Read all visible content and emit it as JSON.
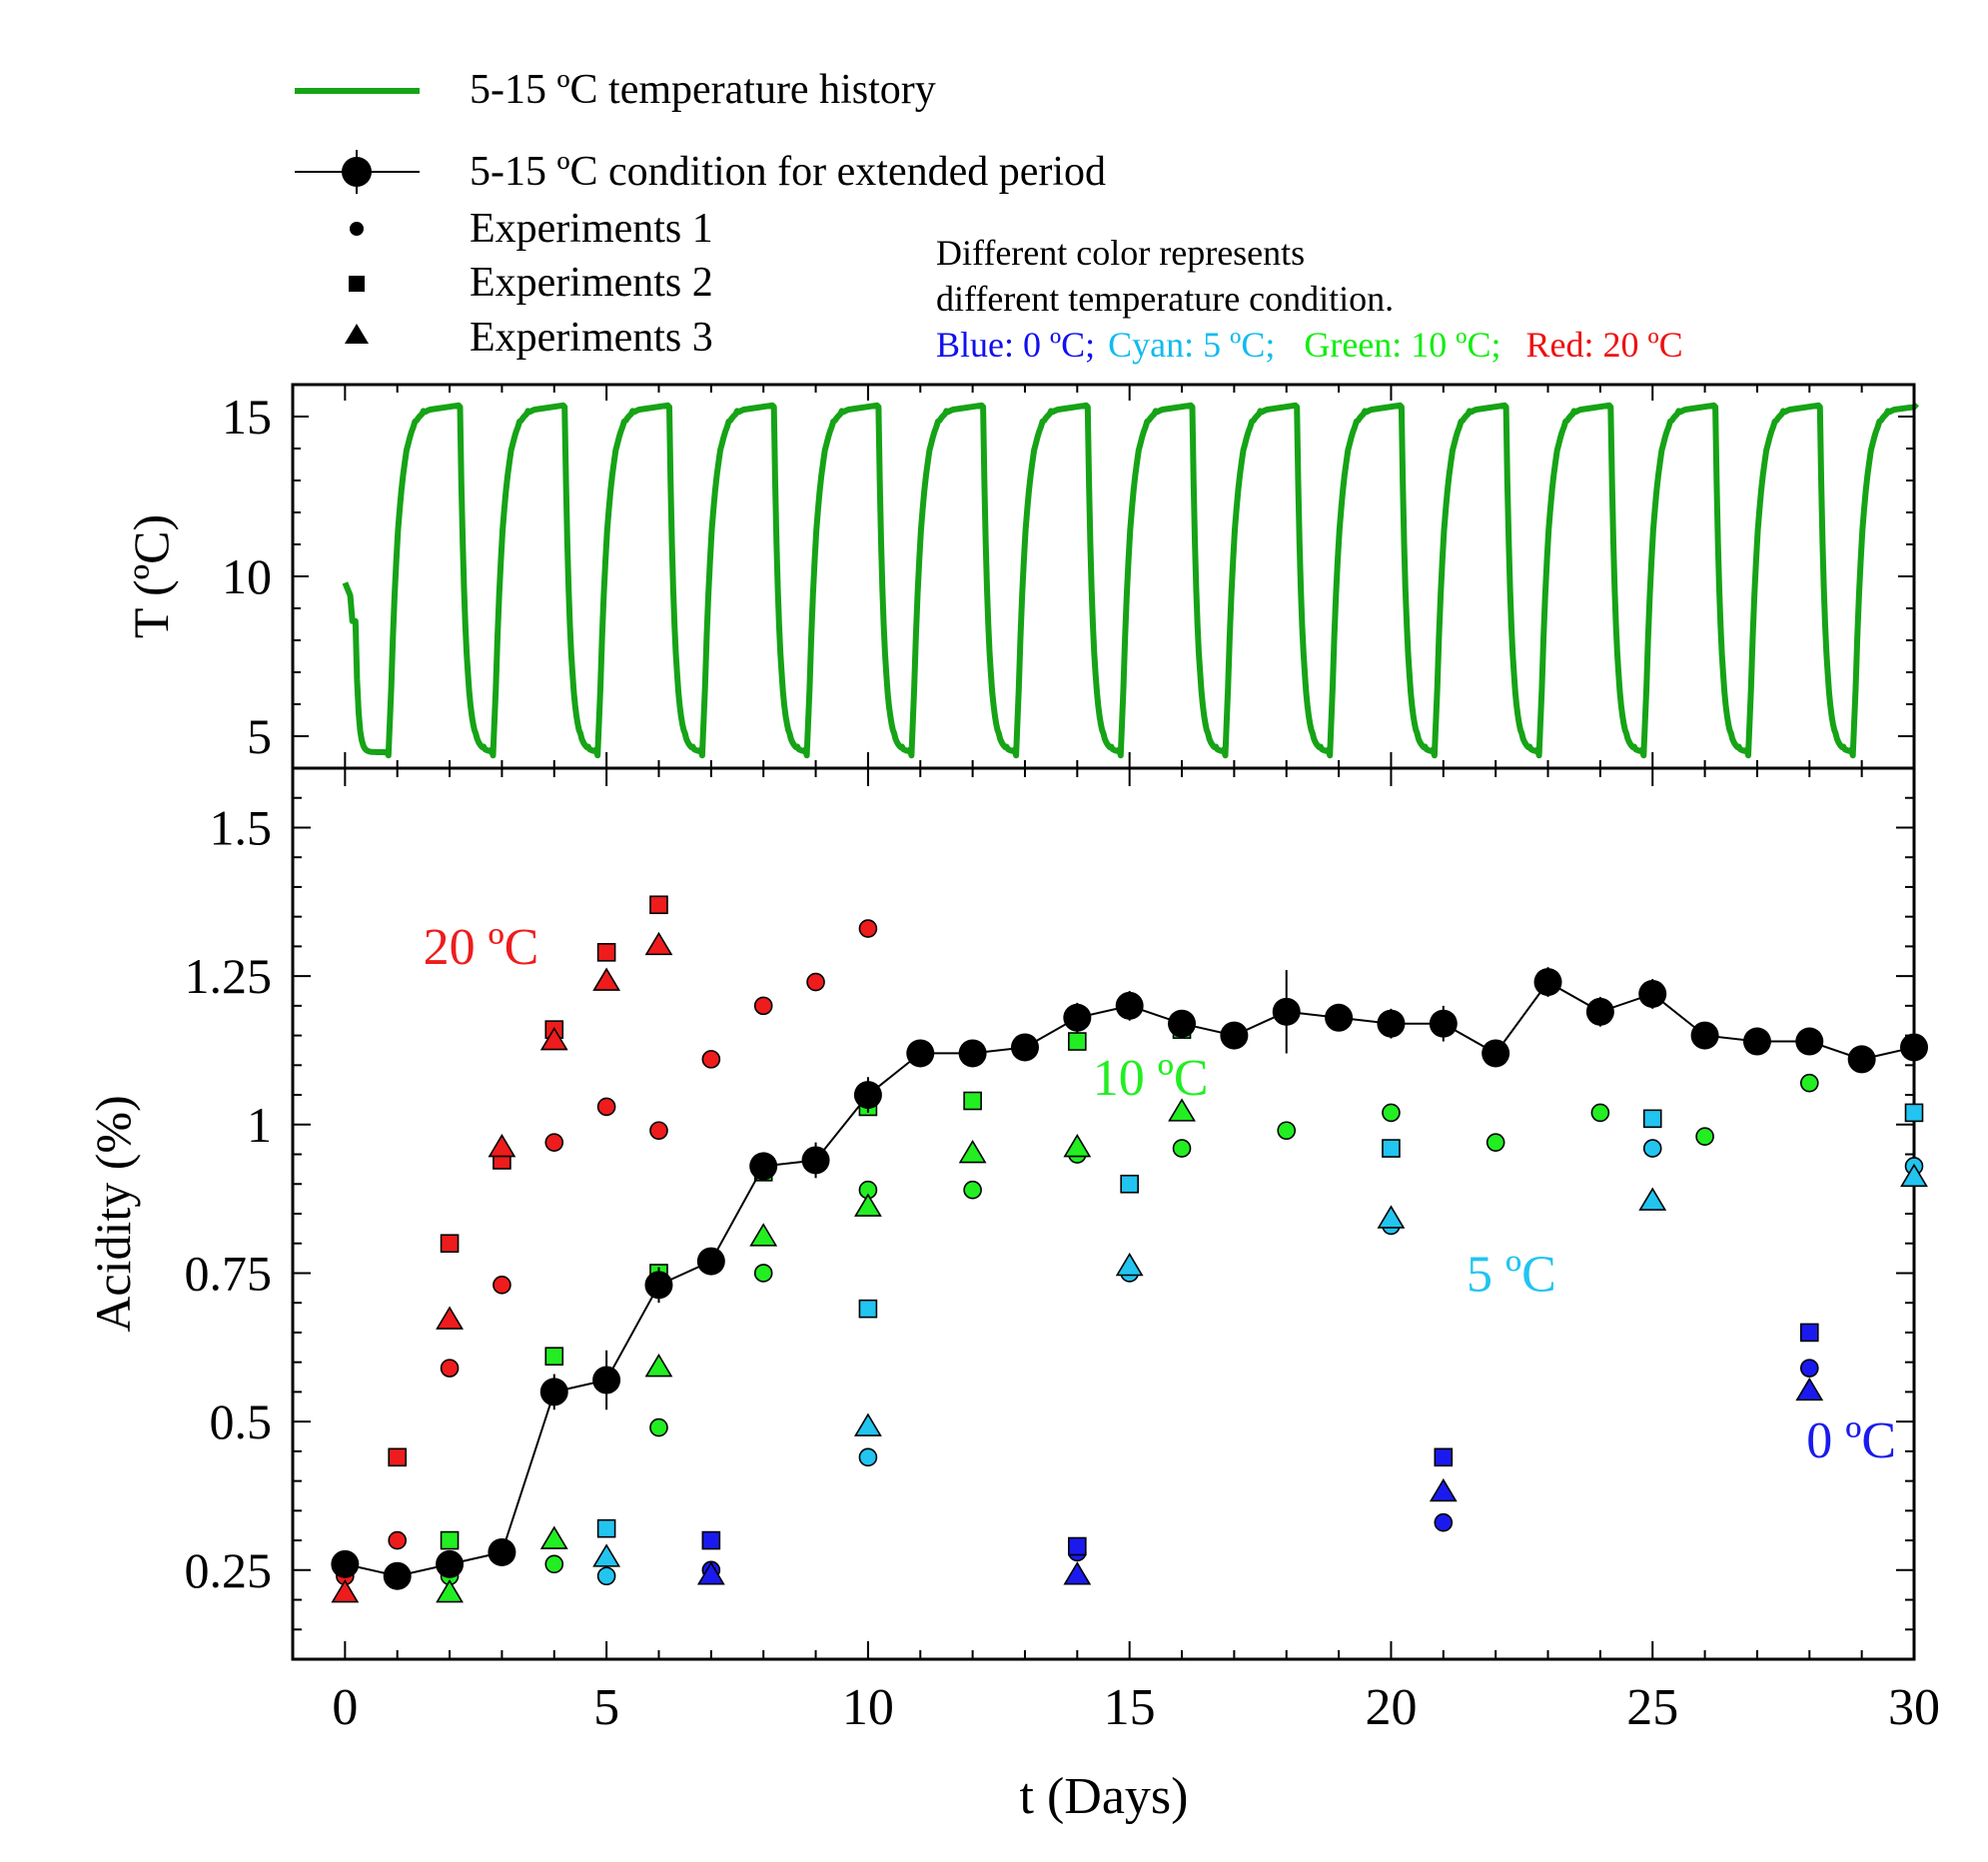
{
  "legend": {
    "items": [
      {
        "label": "5-15 ºC temperature history",
        "marker": "line",
        "color": "#16a316"
      },
      {
        "label": "5-15 ºC condition for extended period",
        "marker": "line-circle",
        "color": "#000000"
      },
      {
        "label": "Experiments 1",
        "marker": "circle",
        "color": "#000000"
      },
      {
        "label": "Experiments 2",
        "marker": "square",
        "color": "#000000"
      },
      {
        "label": "Experiments 3",
        "marker": "triangle",
        "color": "#000000"
      }
    ]
  },
  "note": {
    "line1": "Different color represents",
    "line2": "different temperature condition.",
    "colors": [
      {
        "text": "Blue: 0 ºC;",
        "color": "#1010ee"
      },
      {
        "text": "Cyan: 5 ºC;",
        "color": "#11bbee"
      },
      {
        "text": "Green: 10 ºC;",
        "color": "#11ee11"
      },
      {
        "text": "Red: 20 ºC",
        "color": "#ee1111"
      }
    ]
  },
  "colors": {
    "blue": "#1a1aee",
    "cyan": "#22c4f0",
    "green": "#22ee22",
    "red": "#ee1c1c",
    "history": "#16a316",
    "black": "#000000"
  },
  "chart_data": [
    {
      "type": "line",
      "title": "",
      "xlabel": "",
      "ylabel": "T (ºC)",
      "xlim": [
        -1,
        30
      ],
      "ylim": [
        4,
        16
      ],
      "yticks": [
        "5",
        "10",
        "15"
      ],
      "yticks_values": [
        5,
        10,
        15
      ],
      "series": [
        {
          "name": "5-15 ºC temperature history",
          "color": "#16a316",
          "low": 4.5,
          "high": 15.3,
          "start_value": 9.8,
          "drop_at": [
            0.2,
            2.2,
            4.2,
            6.2,
            8.2,
            10.2,
            12.2,
            14.2,
            16.2,
            18.2,
            20.2,
            22.2,
            24.2,
            26.2,
            28.2
          ],
          "rise_at": [
            0.85,
            2.85,
            4.85,
            6.85,
            8.85,
            10.85,
            12.85,
            14.85,
            16.85,
            18.85,
            20.85,
            22.85,
            24.85,
            26.85,
            28.85
          ]
        }
      ]
    },
    {
      "type": "scatter",
      "title": "",
      "xlabel": "t (Days)",
      "ylabel": "Acidity (%)",
      "xlim": [
        -1,
        30
      ],
      "ylim": [
        0.1,
        1.6
      ],
      "xticks": [
        "0",
        "5",
        "10",
        "15",
        "20",
        "25",
        "30"
      ],
      "xticks_values": [
        0,
        5,
        10,
        15,
        20,
        25,
        30
      ],
      "yticks": [
        "0.25",
        "0.5",
        "0.75",
        "1",
        "1.25",
        "1.5"
      ],
      "yticks_values": [
        0.25,
        0.5,
        0.75,
        1.0,
        1.25,
        1.5
      ],
      "annotations": [
        {
          "text": "20 ºC",
          "x": 2.6,
          "y": 1.27,
          "color": "red"
        },
        {
          "text": "10 ºC",
          "x": 15.4,
          "y": 1.05,
          "color": "green"
        },
        {
          "text": "5 ºC",
          "x": 22.3,
          "y": 0.72,
          "color": "cyan"
        },
        {
          "text": "0 ºC",
          "x": 28.8,
          "y": 0.44,
          "color": "blue"
        }
      ],
      "series": [
        {
          "name": "5-15 ºC condition for extended period",
          "marker": "line-circle",
          "color": "black",
          "points": [
            {
              "x": 0,
              "y": 0.26,
              "err": 0.015
            },
            {
              "x": 1,
              "y": 0.24,
              "err": 0.015
            },
            {
              "x": 2,
              "y": 0.26,
              "err": 0.02
            },
            {
              "x": 3,
              "y": 0.28,
              "err": 0.015
            },
            {
              "x": 4,
              "y": 0.55,
              "err": 0.03
            },
            {
              "x": 5,
              "y": 0.57,
              "err": 0.05
            },
            {
              "x": 6,
              "y": 0.73,
              "err": 0.03
            },
            {
              "x": 7,
              "y": 0.77,
              "err": 0.02
            },
            {
              "x": 8,
              "y": 0.93,
              "err": 0.02
            },
            {
              "x": 9,
              "y": 0.94,
              "err": 0.03
            },
            {
              "x": 10,
              "y": 1.05,
              "err": 0.03
            },
            {
              "x": 11,
              "y": 1.12,
              "err": 0.02
            },
            {
              "x": 12,
              "y": 1.12,
              "err": 0.015
            },
            {
              "x": 13,
              "y": 1.13,
              "err": 0.015
            },
            {
              "x": 14,
              "y": 1.18,
              "err": 0.025
            },
            {
              "x": 15,
              "y": 1.2,
              "err": 0.025
            },
            {
              "x": 16,
              "y": 1.17,
              "err": 0.015
            },
            {
              "x": 17,
              "y": 1.15,
              "err": 0.015
            },
            {
              "x": 18,
              "y": 1.19,
              "err": 0.07
            },
            {
              "x": 19,
              "y": 1.18,
              "err": 0.015
            },
            {
              "x": 20,
              "y": 1.17,
              "err": 0.025
            },
            {
              "x": 21,
              "y": 1.17,
              "err": 0.03
            },
            {
              "x": 22,
              "y": 1.12,
              "err": 0.015
            },
            {
              "x": 23,
              "y": 1.24,
              "err": 0.025
            },
            {
              "x": 24,
              "y": 1.19,
              "err": 0.025
            },
            {
              "x": 25,
              "y": 1.22,
              "err": 0.025
            },
            {
              "x": 26,
              "y": 1.15,
              "err": 0.02
            },
            {
              "x": 27,
              "y": 1.14,
              "err": 0.02
            },
            {
              "x": 28,
              "y": 1.14,
              "err": 0.015
            },
            {
              "x": 29,
              "y": 1.11,
              "err": 0.01
            },
            {
              "x": 30,
              "y": 1.13,
              "err": 0.015
            }
          ]
        },
        {
          "name": "Experiments 1",
          "marker": "circle",
          "points": [
            {
              "x": 0,
              "y": 0.24,
              "color": "red"
            },
            {
              "x": 1,
              "y": 0.3,
              "color": "red"
            },
            {
              "x": 2,
              "y": 0.59,
              "color": "red"
            },
            {
              "x": 3,
              "y": 0.73,
              "color": "red"
            },
            {
              "x": 4,
              "y": 0.97,
              "color": "red"
            },
            {
              "x": 5,
              "y": 1.03,
              "color": "red"
            },
            {
              "x": 6,
              "y": 0.99,
              "color": "red"
            },
            {
              "x": 7,
              "y": 1.11,
              "color": "red"
            },
            {
              "x": 8,
              "y": 1.2,
              "color": "red"
            },
            {
              "x": 9,
              "y": 1.24,
              "color": "red"
            },
            {
              "x": 10,
              "y": 1.33,
              "color": "red"
            },
            {
              "x": 2,
              "y": 0.24,
              "color": "green"
            },
            {
              "x": 4,
              "y": 0.26,
              "color": "green"
            },
            {
              "x": 6,
              "y": 0.49,
              "color": "green"
            },
            {
              "x": 8,
              "y": 0.75,
              "color": "green"
            },
            {
              "x": 10,
              "y": 0.89,
              "color": "green"
            },
            {
              "x": 12,
              "y": 0.89,
              "color": "green"
            },
            {
              "x": 14,
              "y": 0.95,
              "color": "green"
            },
            {
              "x": 16,
              "y": 0.96,
              "color": "green"
            },
            {
              "x": 18,
              "y": 0.99,
              "color": "green"
            },
            {
              "x": 20,
              "y": 1.02,
              "color": "green"
            },
            {
              "x": 22,
              "y": 0.97,
              "color": "green"
            },
            {
              "x": 24,
              "y": 1.02,
              "color": "green"
            },
            {
              "x": 26,
              "y": 0.98,
              "color": "green"
            },
            {
              "x": 28,
              "y": 1.07,
              "color": "green"
            },
            {
              "x": 5,
              "y": 0.24,
              "color": "cyan"
            },
            {
              "x": 10,
              "y": 0.44,
              "color": "cyan"
            },
            {
              "x": 15,
              "y": 0.75,
              "color": "cyan"
            },
            {
              "x": 20,
              "y": 0.83,
              "color": "cyan"
            },
            {
              "x": 25,
              "y": 0.96,
              "color": "cyan"
            },
            {
              "x": 30,
              "y": 0.93,
              "color": "cyan"
            },
            {
              "x": 7,
              "y": 0.25,
              "color": "blue"
            },
            {
              "x": 14,
              "y": 0.28,
              "color": "blue"
            },
            {
              "x": 21,
              "y": 0.33,
              "color": "blue"
            },
            {
              "x": 28,
              "y": 0.59,
              "color": "blue"
            }
          ]
        },
        {
          "name": "Experiments 2",
          "marker": "square",
          "points": [
            {
              "x": 0,
              "y": 0.26,
              "color": "red"
            },
            {
              "x": 1,
              "y": 0.44,
              "color": "red"
            },
            {
              "x": 2,
              "y": 0.8,
              "color": "red"
            },
            {
              "x": 3,
              "y": 0.94,
              "color": "red"
            },
            {
              "x": 4,
              "y": 1.16,
              "color": "red"
            },
            {
              "x": 5,
              "y": 1.29,
              "color": "red"
            },
            {
              "x": 6,
              "y": 1.37,
              "color": "red"
            },
            {
              "x": 2,
              "y": 0.3,
              "color": "green"
            },
            {
              "x": 4,
              "y": 0.61,
              "color": "green"
            },
            {
              "x": 6,
              "y": 0.75,
              "color": "green"
            },
            {
              "x": 8,
              "y": 0.92,
              "color": "green"
            },
            {
              "x": 10,
              "y": 1.03,
              "color": "green"
            },
            {
              "x": 12,
              "y": 1.04,
              "color": "green"
            },
            {
              "x": 14,
              "y": 1.14,
              "color": "green"
            },
            {
              "x": 16,
              "y": 1.16,
              "color": "green"
            },
            {
              "x": 5,
              "y": 0.32,
              "color": "cyan"
            },
            {
              "x": 10,
              "y": 0.69,
              "color": "cyan"
            },
            {
              "x": 15,
              "y": 0.9,
              "color": "cyan"
            },
            {
              "x": 20,
              "y": 0.96,
              "color": "cyan"
            },
            {
              "x": 25,
              "y": 1.01,
              "color": "cyan"
            },
            {
              "x": 30,
              "y": 1.02,
              "color": "cyan"
            },
            {
              "x": 7,
              "y": 0.3,
              "color": "blue"
            },
            {
              "x": 14,
              "y": 0.29,
              "color": "blue"
            },
            {
              "x": 21,
              "y": 0.44,
              "color": "blue"
            },
            {
              "x": 28,
              "y": 0.65,
              "color": "blue"
            }
          ]
        },
        {
          "name": "Experiments 3",
          "marker": "triangle",
          "points": [
            {
              "x": 0,
              "y": 0.21,
              "color": "red"
            },
            {
              "x": 2,
              "y": 0.67,
              "color": "red"
            },
            {
              "x": 3,
              "y": 0.96,
              "color": "red"
            },
            {
              "x": 4,
              "y": 1.14,
              "color": "red"
            },
            {
              "x": 5,
              "y": 1.24,
              "color": "red"
            },
            {
              "x": 6,
              "y": 1.3,
              "color": "red"
            },
            {
              "x": 2,
              "y": 0.21,
              "color": "green"
            },
            {
              "x": 4,
              "y": 0.3,
              "color": "green"
            },
            {
              "x": 6,
              "y": 0.59,
              "color": "green"
            },
            {
              "x": 8,
              "y": 0.81,
              "color": "green"
            },
            {
              "x": 10,
              "y": 0.86,
              "color": "green"
            },
            {
              "x": 12,
              "y": 0.95,
              "color": "green"
            },
            {
              "x": 14,
              "y": 0.96,
              "color": "green"
            },
            {
              "x": 16,
              "y": 1.02,
              "color": "green"
            },
            {
              "x": 5,
              "y": 0.27,
              "color": "cyan"
            },
            {
              "x": 10,
              "y": 0.49,
              "color": "cyan"
            },
            {
              "x": 15,
              "y": 0.76,
              "color": "cyan"
            },
            {
              "x": 20,
              "y": 0.84,
              "color": "cyan"
            },
            {
              "x": 25,
              "y": 0.87,
              "color": "cyan"
            },
            {
              "x": 30,
              "y": 0.91,
              "color": "cyan"
            },
            {
              "x": 7,
              "y": 0.24,
              "color": "blue"
            },
            {
              "x": 14,
              "y": 0.24,
              "color": "blue"
            },
            {
              "x": 21,
              "y": 0.38,
              "color": "blue"
            },
            {
              "x": 28,
              "y": 0.55,
              "color": "blue"
            }
          ]
        }
      ]
    }
  ]
}
